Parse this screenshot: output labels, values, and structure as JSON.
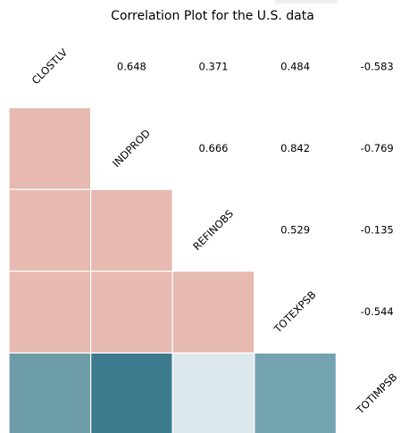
{
  "chart_data": {
    "type": "heatmap",
    "title": "Correlation Plot for the U.S. data",
    "variables": [
      "CLOSTLV",
      "INDPROD",
      "REFINOBS",
      "TOTEXPSB",
      "TOTIMPSB"
    ],
    "upper_values": [
      {
        "row": "CLOSTLV",
        "col": "INDPROD",
        "value": 0.648,
        "label": "0.648"
      },
      {
        "row": "CLOSTLV",
        "col": "REFINOBS",
        "value": 0.371,
        "label": "0.371"
      },
      {
        "row": "CLOSTLV",
        "col": "TOTEXPSB",
        "value": 0.484,
        "label": "0.484"
      },
      {
        "row": "CLOSTLV",
        "col": "TOTIMPSB",
        "value": -0.583,
        "label": "-0.583"
      },
      {
        "row": "INDPROD",
        "col": "REFINOBS",
        "value": 0.666,
        "label": "0.666"
      },
      {
        "row": "INDPROD",
        "col": "TOTEXPSB",
        "value": 0.842,
        "label": "0.842"
      },
      {
        "row": "INDPROD",
        "col": "TOTIMPSB",
        "value": -0.769,
        "label": "-0.769"
      },
      {
        "row": "REFINOBS",
        "col": "TOTEXPSB",
        "value": 0.529,
        "label": "0.529"
      },
      {
        "row": "REFINOBS",
        "col": "TOTIMPSB",
        "value": -0.135,
        "label": "-0.135"
      },
      {
        "row": "TOTEXPSB",
        "col": "TOTIMPSB",
        "value": -0.544,
        "label": "-0.544"
      }
    ],
    "lower_cells": [
      {
        "row": "INDPROD",
        "col": "CLOSTLV",
        "value": 0.648,
        "color": "#e6bab0"
      },
      {
        "row": "REFINOBS",
        "col": "CLOSTLV",
        "value": 0.371,
        "color": "#e6bab0"
      },
      {
        "row": "REFINOBS",
        "col": "INDPROD",
        "value": 0.666,
        "color": "#e6bab0"
      },
      {
        "row": "TOTEXPSB",
        "col": "CLOSTLV",
        "value": 0.484,
        "color": "#e6bab0"
      },
      {
        "row": "TOTEXPSB",
        "col": "INDPROD",
        "value": 0.842,
        "color": "#e6bab0"
      },
      {
        "row": "TOTEXPSB",
        "col": "REFINOBS",
        "value": 0.529,
        "color": "#e6bab0"
      },
      {
        "row": "TOTIMPSB",
        "col": "CLOSTLV",
        "value": -0.583,
        "color": "#6b9ca8"
      },
      {
        "row": "TOTIMPSB",
        "col": "INDPROD",
        "value": -0.769,
        "color": "#3c7a8e"
      },
      {
        "row": "TOTIMPSB",
        "col": "REFINOBS",
        "value": -0.135,
        "color": "#dce8ec"
      },
      {
        "row": "TOTIMPSB",
        "col": "TOTEXPSB",
        "value": -0.544,
        "color": "#74a3b0"
      }
    ],
    "colors": {
      "positive": "#e6bab0",
      "cell_border": "#ffffff"
    }
  }
}
